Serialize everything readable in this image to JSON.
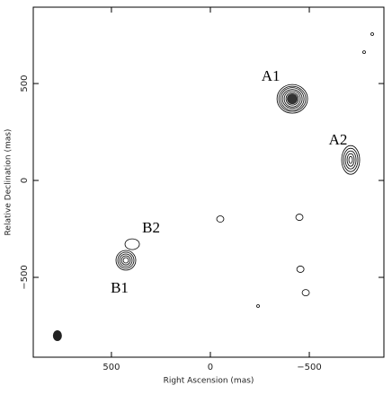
{
  "chart_data": {
    "type": "contour",
    "xlabel": "Right Ascension  (mas)",
    "ylabel": "Relative Declination  (mas)",
    "xlim": [
      895,
      -877
    ],
    "ylim": [
      -912,
      894
    ],
    "xticks": [
      500,
      0,
      {
        "value": -500,
        "label": "−500"
      }
    ],
    "yticks": [
      {
        "value": -500,
        "label": "−500"
      },
      0,
      500
    ],
    "components": [
      {
        "name": "A1",
        "x": -414,
        "y": 421
      },
      {
        "name": "A2",
        "x": -709,
        "y": 106
      },
      {
        "name": "B1",
        "x": 427,
        "y": -412
      },
      {
        "name": "B2",
        "x": 395,
        "y": -329
      }
    ],
    "features": [
      {
        "x": -50,
        "y": -199
      },
      {
        "x": -450,
        "y": -190
      },
      {
        "x": -455,
        "y": -458
      },
      {
        "x": -482,
        "y": -579
      },
      {
        "x": -818,
        "y": 755
      },
      {
        "x": -777,
        "y": 662
      },
      {
        "x": -241,
        "y": -648
      }
    ],
    "beam": {
      "x": 773,
      "y": -801
    },
    "color": "#000000"
  }
}
